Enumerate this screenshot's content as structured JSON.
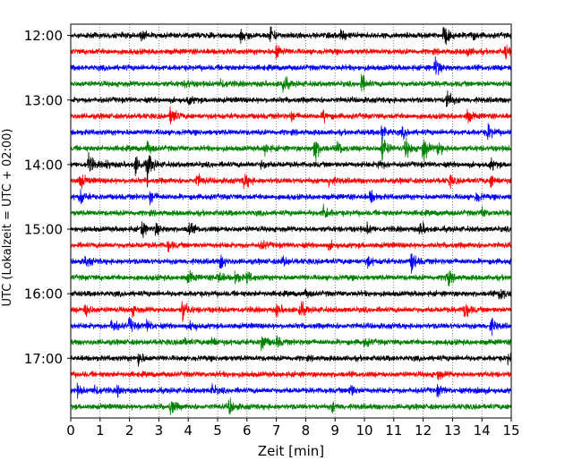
{
  "chart_data": {
    "type": "line",
    "title": "",
    "xlabel": "Zeit  [min]",
    "ylabel": "UTC (Lokalzeit = UTC + 02:00)",
    "xlim": [
      0,
      15
    ],
    "x_ticks": [
      "0",
      "1",
      "2",
      "3",
      "4",
      "5",
      "6",
      "7",
      "8",
      "9",
      "10",
      "11",
      "12",
      "13",
      "14",
      "15"
    ],
    "y_tick_labels": [
      "12:00",
      "13:00",
      "14:00",
      "15:00",
      "16:00",
      "17:00"
    ],
    "grid": "vertical dotted at each minute",
    "colors": [
      "#000000",
      "#ff0000",
      "#0000ff",
      "#008000"
    ],
    "traces": [
      {
        "start_utc": "12:00",
        "color": "#000000",
        "events": [
          {
            "t": 2.4,
            "a": 5
          },
          {
            "t": 5.8,
            "a": 6
          },
          {
            "t": 6.8,
            "a": 8
          },
          {
            "t": 9.2,
            "a": 4
          },
          {
            "t": 12.7,
            "a": 10
          },
          {
            "t": 13.6,
            "a": 5
          }
        ]
      },
      {
        "start_utc": "12:15",
        "color": "#ff0000",
        "events": [
          {
            "t": 7.0,
            "a": 8
          },
          {
            "t": 14.8,
            "a": 6
          },
          {
            "t": 13.5,
            "a": 4
          }
        ]
      },
      {
        "start_utc": "12:30",
        "color": "#0000ff",
        "events": [
          {
            "t": 12.4,
            "a": 11
          }
        ]
      },
      {
        "start_utc": "12:45",
        "color": "#008000",
        "events": [
          {
            "t": 3.9,
            "a": 4
          },
          {
            "t": 5.1,
            "a": 5
          },
          {
            "t": 7.2,
            "a": 10
          },
          {
            "t": 9.9,
            "a": 8
          }
        ]
      },
      {
        "start_utc": "13:00",
        "color": "#000000",
        "events": [
          {
            "t": 12.8,
            "a": 10
          },
          {
            "t": 4.0,
            "a": 4
          }
        ]
      },
      {
        "start_utc": "13:15",
        "color": "#ff0000",
        "events": [
          {
            "t": 3.4,
            "a": 11
          },
          {
            "t": 7.5,
            "a": 4
          },
          {
            "t": 8.6,
            "a": 5
          },
          {
            "t": 13.5,
            "a": 6
          }
        ]
      },
      {
        "start_utc": "13:30",
        "color": "#0000ff",
        "events": [
          {
            "t": 10.6,
            "a": 9
          },
          {
            "t": 14.2,
            "a": 8
          },
          {
            "t": 11.3,
            "a": 4
          }
        ]
      },
      {
        "start_utc": "13:45",
        "color": "#008000",
        "events": [
          {
            "t": 2.6,
            "a": 6
          },
          {
            "t": 6.6,
            "a": 5
          },
          {
            "t": 8.3,
            "a": 14
          },
          {
            "t": 9.1,
            "a": 6
          },
          {
            "t": 10.6,
            "a": 14
          },
          {
            "t": 11.4,
            "a": 10
          },
          {
            "t": 12.0,
            "a": 14
          },
          {
            "t": 12.5,
            "a": 8
          }
        ]
      },
      {
        "start_utc": "14:00",
        "color": "#000000",
        "events": [
          {
            "t": 0.6,
            "a": 10
          },
          {
            "t": 2.2,
            "a": 9
          },
          {
            "t": 2.6,
            "a": 16
          },
          {
            "t": 1.2,
            "a": 4
          },
          {
            "t": 6.5,
            "a": 4
          },
          {
            "t": 10.5,
            "a": 5
          },
          {
            "t": 14.3,
            "a": 5
          }
        ]
      },
      {
        "start_utc": "14:15",
        "color": "#ff0000",
        "events": [
          {
            "t": 0.3,
            "a": 8
          },
          {
            "t": 4.3,
            "a": 6
          },
          {
            "t": 5.9,
            "a": 8
          },
          {
            "t": 8.8,
            "a": 5
          },
          {
            "t": 12.9,
            "a": 5
          },
          {
            "t": 14.3,
            "a": 6
          }
        ]
      },
      {
        "start_utc": "14:30",
        "color": "#0000ff",
        "events": [
          {
            "t": 0.3,
            "a": 7
          },
          {
            "t": 2.7,
            "a": 6
          },
          {
            "t": 10.2,
            "a": 6
          },
          {
            "t": 13.8,
            "a": 5
          }
        ]
      },
      {
        "start_utc": "14:45",
        "color": "#008000",
        "events": [
          {
            "t": 8.6,
            "a": 8
          },
          {
            "t": 14.0,
            "a": 4
          }
        ]
      },
      {
        "start_utc": "15:00",
        "color": "#000000",
        "events": [
          {
            "t": 2.4,
            "a": 8
          },
          {
            "t": 2.9,
            "a": 6
          },
          {
            "t": 4.0,
            "a": 7
          },
          {
            "t": 11.9,
            "a": 6
          },
          {
            "t": 10.1,
            "a": 4
          }
        ]
      },
      {
        "start_utc": "15:15",
        "color": "#ff0000",
        "events": [
          {
            "t": 3.3,
            "a": 5
          },
          {
            "t": 6.5,
            "a": 4
          },
          {
            "t": 8.8,
            "a": 3
          }
        ]
      },
      {
        "start_utc": "15:30",
        "color": "#0000ff",
        "events": [
          {
            "t": 0.5,
            "a": 5
          },
          {
            "t": 5.1,
            "a": 7
          },
          {
            "t": 7.2,
            "a": 5
          },
          {
            "t": 10.1,
            "a": 5
          },
          {
            "t": 11.6,
            "a": 10
          }
        ]
      },
      {
        "start_utc": "15:45",
        "color": "#008000",
        "events": [
          {
            "t": 4.0,
            "a": 6
          },
          {
            "t": 5.0,
            "a": 6
          },
          {
            "t": 5.6,
            "a": 6
          },
          {
            "t": 6.0,
            "a": 5
          },
          {
            "t": 12.8,
            "a": 8
          }
        ]
      },
      {
        "start_utc": "16:00",
        "color": "#000000",
        "events": [
          {
            "t": 14.6,
            "a": 8
          },
          {
            "t": 8.0,
            "a": 3
          }
        ]
      },
      {
        "start_utc": "16:15",
        "color": "#ff0000",
        "events": [
          {
            "t": 0.5,
            "a": 7
          },
          {
            "t": 2.1,
            "a": 4
          },
          {
            "t": 3.8,
            "a": 10
          },
          {
            "t": 7.0,
            "a": 5
          },
          {
            "t": 7.8,
            "a": 8
          },
          {
            "t": 13.4,
            "a": 10
          }
        ]
      },
      {
        "start_utc": "16:30",
        "color": "#0000ff",
        "events": [
          {
            "t": 1.4,
            "a": 7
          },
          {
            "t": 2.0,
            "a": 7
          },
          {
            "t": 2.6,
            "a": 5
          },
          {
            "t": 4.1,
            "a": 5
          },
          {
            "t": 14.3,
            "a": 7
          }
        ]
      },
      {
        "start_utc": "16:45",
        "color": "#008000",
        "events": [
          {
            "t": 3.8,
            "a": 4
          },
          {
            "t": 4.8,
            "a": 5
          },
          {
            "t": 6.5,
            "a": 10
          },
          {
            "t": 7.0,
            "a": 5
          },
          {
            "t": 10.0,
            "a": 4
          }
        ]
      },
      {
        "start_utc": "17:00",
        "color": "#000000",
        "events": [
          {
            "t": 2.3,
            "a": 6
          },
          {
            "t": 14.9,
            "a": 5
          }
        ]
      },
      {
        "start_utc": "17:15",
        "color": "#ff0000",
        "events": [
          {
            "t": 12.5,
            "a": 4
          }
        ]
      },
      {
        "start_utc": "17:30",
        "color": "#0000ff",
        "events": [
          {
            "t": 0.2,
            "a": 5
          },
          {
            "t": 0.8,
            "a": 6
          },
          {
            "t": 1.6,
            "a": 4
          },
          {
            "t": 4.8,
            "a": 5
          },
          {
            "t": 9.5,
            "a": 7
          },
          {
            "t": 12.5,
            "a": 5
          },
          {
            "t": 13.8,
            "a": 4
          }
        ]
      },
      {
        "start_utc": "17:45",
        "color": "#008000",
        "events": [
          {
            "t": 3.4,
            "a": 8
          },
          {
            "t": 5.4,
            "a": 7
          },
          {
            "t": 8.9,
            "a": 4
          }
        ]
      }
    ]
  }
}
